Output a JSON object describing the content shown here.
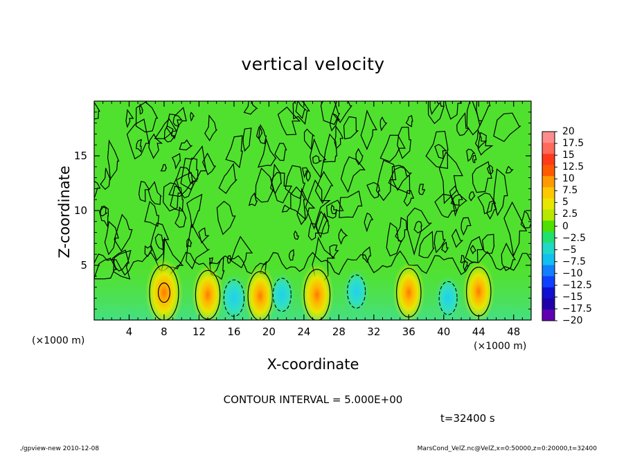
{
  "chart_data": {
    "type": "heatmap",
    "title": "vertical velocity",
    "xlabel": "X-coordinate",
    "ylabel": "Z-coordinate",
    "x_unit_label": "(×1000 m)",
    "xlim": [
      0,
      50
    ],
    "ylim": [
      0,
      20
    ],
    "x_ticks": [
      4,
      8,
      12,
      16,
      20,
      24,
      28,
      32,
      36,
      40,
      44,
      48
    ],
    "y_ticks": [
      5,
      10,
      15
    ],
    "colorbar": {
      "min": -20,
      "max": 20,
      "levels": [
        "20",
        "17.5",
        "15",
        "12.5",
        "10",
        "7.5",
        "5",
        "2.5",
        "0",
        "−2.5",
        "−5",
        "−7.5",
        "−10",
        "−12.5",
        "−15",
        "−17.5",
        "−20"
      ],
      "colors": [
        "#ff8c8c",
        "#ff6a5a",
        "#ff3a1a",
        "#ff5a00",
        "#ff9a00",
        "#ffc800",
        "#e8e600",
        "#b8e800",
        "#4de000",
        "#20e070",
        "#20d8c8",
        "#10c0f0",
        "#1080ff",
        "#1040ff",
        "#1010d0",
        "#2000a8",
        "#6000b0"
      ]
    },
    "features": [
      {
        "type": "updraft",
        "x": 8,
        "z": 2.5,
        "peak": 10
      },
      {
        "type": "updraft",
        "x": 13,
        "z": 2.3,
        "peak": 7
      },
      {
        "type": "downdraft",
        "x": 16,
        "z": 2.0,
        "peak": -7
      },
      {
        "type": "updraft",
        "x": 19,
        "z": 2.2,
        "peak": 7
      },
      {
        "type": "downdraft",
        "x": 21.5,
        "z": 2.3,
        "peak": -5
      },
      {
        "type": "updraft",
        "x": 25.5,
        "z": 2.3,
        "peak": 8
      },
      {
        "type": "downdraft",
        "x": 30,
        "z": 2.6,
        "peak": -5
      },
      {
        "type": "updraft",
        "x": 36,
        "z": 2.5,
        "peak": 7
      },
      {
        "type": "downdraft",
        "x": 40.5,
        "z": 2.0,
        "peak": -5
      },
      {
        "type": "updraft",
        "x": 44,
        "z": 2.6,
        "peak": 7
      }
    ]
  },
  "contour_interval_text": "CONTOUR INTERVAL = 5.000E+00",
  "time_text": "t=32400 s",
  "footer": {
    "left": "./gpview-new  2010-12-08",
    "right": "MarsCond_VelZ.nc@VelZ,x=0:50000,z=0:20000,t=32400"
  }
}
